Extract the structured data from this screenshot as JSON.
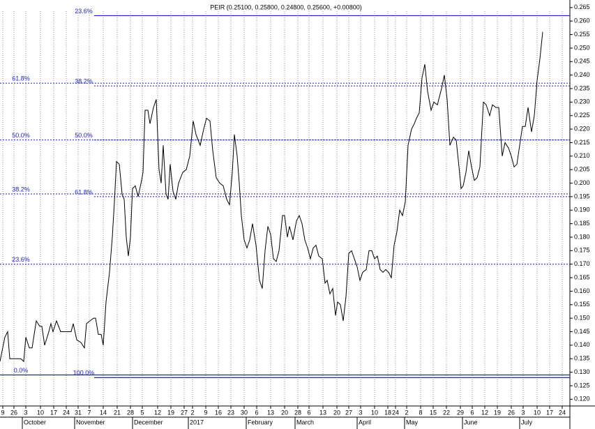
{
  "chart_data": {
    "type": "line",
    "title": "PEIR (0.25100, 0.25800, 0.24800, 0.25600, +0.00800)",
    "xlim": [
      0,
      204.25
    ],
    "ylim": [
      0.1175,
      0.2678
    ],
    "xticks": [
      {
        "value": 1,
        "label": "9"
      },
      {
        "value": 5,
        "label": "26"
      },
      {
        "value": 9.25,
        "label": "3"
      },
      {
        "value": 14.5,
        "label": "10"
      },
      {
        "value": 19.25,
        "label": "17"
      },
      {
        "value": 23.75,
        "label": "24"
      },
      {
        "value": 28,
        "label": "31"
      },
      {
        "value": 32,
        "label": "7"
      },
      {
        "value": 37,
        "label": "14"
      },
      {
        "value": 42,
        "label": "21"
      },
      {
        "value": 46.75,
        "label": "28"
      },
      {
        "value": 51,
        "label": "5"
      },
      {
        "value": 56.5,
        "label": "12"
      },
      {
        "value": 61.25,
        "label": "19"
      },
      {
        "value": 66,
        "label": "27"
      },
      {
        "value": 69,
        "label": "2"
      },
      {
        "value": 73.75,
        "label": "9"
      },
      {
        "value": 78.25,
        "label": "16"
      },
      {
        "value": 82.75,
        "label": "23"
      },
      {
        "value": 87.5,
        "label": "30"
      },
      {
        "value": 92,
        "label": "6"
      },
      {
        "value": 97,
        "label": "13"
      },
      {
        "value": 102,
        "label": "20"
      },
      {
        "value": 106.75,
        "label": "28"
      },
      {
        "value": 110.75,
        "label": "6"
      },
      {
        "value": 115.75,
        "label": "13"
      },
      {
        "value": 120.75,
        "label": "20"
      },
      {
        "value": 125,
        "label": "27"
      },
      {
        "value": 129.25,
        "label": "3"
      },
      {
        "value": 134.25,
        "label": "10"
      },
      {
        "value": 139,
        "label": "18"
      },
      {
        "value": 141.75,
        "label": "24"
      },
      {
        "value": 145.75,
        "label": "2"
      },
      {
        "value": 150.75,
        "label": "8"
      },
      {
        "value": 155.25,
        "label": "15"
      },
      {
        "value": 160,
        "label": "22"
      },
      {
        "value": 165,
        "label": "29"
      },
      {
        "value": 169.25,
        "label": "6"
      },
      {
        "value": 173.75,
        "label": "12"
      },
      {
        "value": 178.25,
        "label": "19"
      },
      {
        "value": 183.25,
        "label": "26"
      },
      {
        "value": 187.5,
        "label": "3"
      },
      {
        "value": 192.5,
        "label": "10"
      },
      {
        "value": 197,
        "label": "17"
      },
      {
        "value": 201.5,
        "label": "24"
      }
    ],
    "months": [
      {
        "value": 8,
        "label": "October"
      },
      {
        "value": 26.75,
        "label": "November"
      },
      {
        "value": 47.5,
        "label": "December"
      },
      {
        "value": 67.5,
        "label": "2017"
      },
      {
        "value": 88.25,
        "label": "February"
      },
      {
        "value": 105.75,
        "label": "March"
      },
      {
        "value": 128,
        "label": "April"
      },
      {
        "value": 145,
        "label": "May"
      },
      {
        "value": 165.75,
        "label": "June"
      },
      {
        "value": 186.25,
        "label": "July"
      }
    ],
    "yticks": [
      {
        "value": 0.265,
        "label": "0.265"
      },
      {
        "value": 0.26,
        "label": "0.260"
      },
      {
        "value": 0.255,
        "label": "0.255"
      },
      {
        "value": 0.25,
        "label": "0.250"
      },
      {
        "value": 0.245,
        "label": "0.245"
      },
      {
        "value": 0.24,
        "label": "0.240"
      },
      {
        "value": 0.235,
        "label": "0.235"
      },
      {
        "value": 0.23,
        "label": "0.230"
      },
      {
        "value": 0.225,
        "label": "0.225"
      },
      {
        "value": 0.22,
        "label": "0.220"
      },
      {
        "value": 0.215,
        "label": "0.215"
      },
      {
        "value": 0.21,
        "label": "0.210"
      },
      {
        "value": 0.205,
        "label": "0.205"
      },
      {
        "value": 0.2,
        "label": "0.200"
      },
      {
        "value": 0.195,
        "label": "0.195"
      },
      {
        "value": 0.19,
        "label": "0.190"
      },
      {
        "value": 0.185,
        "label": "0.185"
      },
      {
        "value": 0.18,
        "label": "0.180"
      },
      {
        "value": 0.175,
        "label": "0.175"
      },
      {
        "value": 0.17,
        "label": "0.170"
      },
      {
        "value": 0.165,
        "label": "0.165"
      },
      {
        "value": 0.16,
        "label": "0.160"
      },
      {
        "value": 0.155,
        "label": "0.155"
      },
      {
        "value": 0.15,
        "label": "0.150"
      },
      {
        "value": 0.145,
        "label": "0.145"
      },
      {
        "value": 0.14,
        "label": "0.140"
      },
      {
        "value": 0.135,
        "label": "0.135"
      },
      {
        "value": 0.13,
        "label": "0.130"
      },
      {
        "value": 0.125,
        "label": "0.125"
      },
      {
        "value": 0.12,
        "label": "0.120"
      }
    ],
    "grid": true,
    "fib_color": "#2020c0",
    "fib_left": [
      {
        "label": "61.8%",
        "value": 0.237,
        "style": "dashed"
      },
      {
        "label": "50.0%",
        "value": 0.216,
        "style": "dashed"
      },
      {
        "label": "38.2%",
        "value": 0.196,
        "style": "dashed"
      },
      {
        "label": "23.6%",
        "value": 0.17,
        "style": "dashed"
      },
      {
        "label": "0.0%",
        "value": 0.129,
        "style": "solid"
      }
    ],
    "fib_right": [
      {
        "label": "23.6%",
        "value": 0.262,
        "style": "solid"
      },
      {
        "label": "38.2%",
        "value": 0.236,
        "style": "dashed"
      },
      {
        "label": "50.0%",
        "value": 0.216,
        "style": "dashed"
      },
      {
        "label": "61.8%",
        "value": 0.195,
        "style": "dashed"
      },
      {
        "label": "100.0%",
        "value": 0.128,
        "style": "solid"
      }
    ],
    "series": [
      {
        "color": "#000000",
        "x": [
          0,
          1.75,
          2.75,
          3.5,
          5.5,
          7.5,
          8.5,
          9.25,
          10.5,
          11.5,
          13,
          14.25,
          15,
          16,
          17.5,
          18.25,
          19,
          20.25,
          21.75,
          23,
          24.5,
          25.5,
          26.25,
          27.5,
          29,
          30.25,
          31,
          32.25,
          33.5,
          34.25,
          35.25,
          36.25,
          37,
          38,
          39.25,
          40.25,
          41,
          41.75,
          42.75,
          43.75,
          44.5,
          45.25,
          46,
          46.75,
          47.5,
          48.5,
          49.5,
          50.75,
          51.25,
          52,
          53,
          53.75,
          55,
          56,
          57,
          57.75,
          58.5,
          59.5,
          60.25,
          61,
          62,
          63,
          64,
          65.5,
          66.75,
          68,
          69.25,
          70.25,
          71.75,
          73,
          74,
          75.25,
          76.25,
          77.5,
          78.75,
          80,
          81.25,
          82.25,
          83.25,
          84,
          85,
          85.75,
          86.5,
          87.5,
          88.5,
          89.5,
          90.5,
          91.75,
          93,
          94,
          95,
          96,
          97,
          98,
          99,
          100,
          101.25,
          102,
          103,
          103.75,
          105,
          106.25,
          107.25,
          108.25,
          109.25,
          110.25,
          111.25,
          112.25,
          113.25,
          114.25,
          115.5,
          116.5,
          117.25,
          118.25,
          119.25,
          120.25,
          121,
          122,
          123,
          124,
          125,
          126,
          127,
          128,
          129,
          130,
          131.25,
          132.25,
          133.25,
          134.25,
          135.25,
          136.25,
          137.25,
          138.25,
          139.25,
          140.25,
          141.25,
          142.25,
          143.25,
          144.25,
          145.25,
          146.25,
          147.5,
          148.5,
          149.25,
          150.25,
          151.25,
          152.25,
          153.25,
          154.5,
          155.5,
          156.75,
          158.25,
          159.25,
          160.25,
          161.25,
          162.5,
          163.5,
          164.5,
          165.25,
          166,
          167,
          168,
          169,
          170,
          171,
          172,
          173.25,
          174.25,
          175.5,
          176.5,
          177.75,
          178.75,
          180,
          181,
          182.25,
          183.25,
          184.25,
          185.25,
          186.25,
          187.25,
          188.25,
          189.25,
          190.5,
          191.5,
          192.5,
          193.5,
          194.5
        ],
        "values": [
          0.134,
          0.143,
          0.145,
          0.135,
          0.135,
          0.135,
          0.134,
          0.143,
          0.139,
          0.139,
          0.149,
          0.147,
          0.147,
          0.14,
          0.145,
          0.148,
          0.145,
          0.149,
          0.145,
          0.145,
          0.145,
          0.145,
          0.148,
          0.142,
          0.141,
          0.139,
          0.148,
          0.149,
          0.15,
          0.15,
          0.144,
          0.144,
          0.14,
          0.156,
          0.167,
          0.18,
          0.193,
          0.208,
          0.207,
          0.196,
          0.194,
          0.18,
          0.173,
          0.18,
          0.198,
          0.199,
          0.195,
          0.201,
          0.204,
          0.227,
          0.227,
          0.222,
          0.228,
          0.231,
          0.205,
          0.2,
          0.214,
          0.196,
          0.194,
          0.207,
          0.197,
          0.194,
          0.2,
          0.204,
          0.205,
          0.21,
          0.223,
          0.218,
          0.214,
          0.22,
          0.224,
          0.223,
          0.212,
          0.202,
          0.2,
          0.199,
          0.194,
          0.192,
          0.204,
          0.218,
          0.21,
          0.2,
          0.188,
          0.179,
          0.176,
          0.179,
          0.185,
          0.177,
          0.164,
          0.161,
          0.175,
          0.184,
          0.181,
          0.172,
          0.171,
          0.175,
          0.188,
          0.188,
          0.18,
          0.184,
          0.179,
          0.186,
          0.188,
          0.185,
          0.179,
          0.176,
          0.172,
          0.176,
          0.177,
          0.173,
          0.172,
          0.163,
          0.164,
          0.159,
          0.161,
          0.151,
          0.156,
          0.155,
          0.149,
          0.158,
          0.174,
          0.175,
          0.172,
          0.169,
          0.164,
          0.167,
          0.168,
          0.175,
          0.175,
          0.172,
          0.173,
          0.168,
          0.167,
          0.168,
          0.167,
          0.165,
          0.177,
          0.182,
          0.19,
          0.188,
          0.193,
          0.214,
          0.22,
          0.222,
          0.224,
          0.226,
          0.239,
          0.244,
          0.234,
          0.227,
          0.23,
          0.229,
          0.235,
          0.24,
          0.231,
          0.214,
          0.217,
          0.216,
          0.206,
          0.198,
          0.199,
          0.204,
          0.212,
          0.206,
          0.201,
          0.202,
          0.206,
          0.23,
          0.229,
          0.225,
          0.229,
          0.228,
          0.228,
          0.21,
          0.215,
          0.213,
          0.21,
          0.206,
          0.207,
          0.214,
          0.221,
          0.221,
          0.228,
          0.219,
          0.225,
          0.238,
          0.246,
          0.256
        ]
      }
    ]
  }
}
